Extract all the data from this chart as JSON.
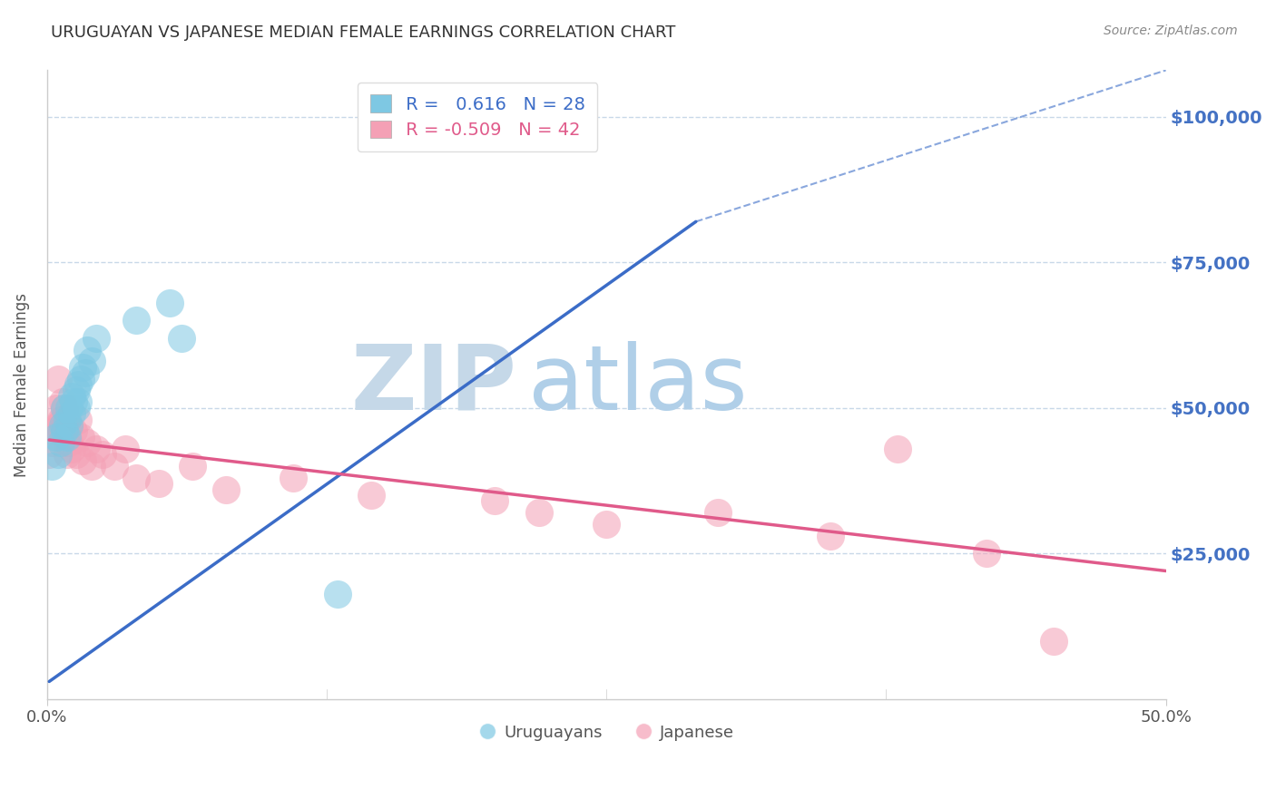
{
  "title": "URUGUAYAN VS JAPANESE MEDIAN FEMALE EARNINGS CORRELATION CHART",
  "source": "Source: ZipAtlas.com",
  "xlabel": "",
  "ylabel": "Median Female Earnings",
  "xlim": [
    0.0,
    0.5
  ],
  "ylim": [
    0,
    108000
  ],
  "xtick_labels": [
    "0.0%",
    "50.0%"
  ],
  "ytick_values": [
    25000,
    50000,
    75000,
    100000
  ],
  "ytick_labels": [
    "$25,000",
    "$50,000",
    "$75,000",
    "$100,000"
  ],
  "legend_R_blue": "0.616",
  "legend_N_blue": "28",
  "legend_R_pink": "-0.509",
  "legend_N_pink": "42",
  "legend_label_blue": "Uruguayans",
  "legend_label_pink": "Japanese",
  "watermark_zip": "ZIP",
  "watermark_atlas": "atlas",
  "blue_color": "#7ec8e3",
  "pink_color": "#f4a0b5",
  "blue_line_color": "#3b6cc7",
  "pink_line_color": "#e05a8a",
  "blue_scatter": {
    "x": [
      0.002,
      0.004,
      0.005,
      0.006,
      0.007,
      0.008,
      0.008,
      0.009,
      0.009,
      0.01,
      0.01,
      0.011,
      0.011,
      0.012,
      0.013,
      0.013,
      0.014,
      0.014,
      0.015,
      0.016,
      0.017,
      0.018,
      0.02,
      0.022,
      0.04,
      0.055,
      0.06,
      0.13
    ],
    "y": [
      40000,
      45000,
      42000,
      44000,
      47000,
      50000,
      46000,
      48000,
      45000,
      50000,
      47000,
      52000,
      49000,
      51000,
      53000,
      50000,
      54000,
      51000,
      55000,
      57000,
      56000,
      60000,
      58000,
      62000,
      65000,
      68000,
      62000,
      18000
    ]
  },
  "pink_scatter": {
    "x": [
      0.001,
      0.002,
      0.003,
      0.004,
      0.005,
      0.005,
      0.006,
      0.006,
      0.007,
      0.007,
      0.008,
      0.008,
      0.009,
      0.009,
      0.01,
      0.01,
      0.011,
      0.012,
      0.013,
      0.014,
      0.015,
      0.016,
      0.018,
      0.02,
      0.022,
      0.025,
      0.03,
      0.035,
      0.04,
      0.05,
      0.065,
      0.08,
      0.11,
      0.145,
      0.2,
      0.22,
      0.25,
      0.3,
      0.35,
      0.38,
      0.42,
      0.45
    ],
    "y": [
      42000,
      44000,
      46000,
      50000,
      47000,
      55000,
      48000,
      46000,
      51000,
      48000,
      50000,
      47000,
      44000,
      42000,
      47000,
      44000,
      43000,
      46000,
      42000,
      48000,
      45000,
      41000,
      44000,
      40000,
      43000,
      42000,
      40000,
      43000,
      38000,
      37000,
      40000,
      36000,
      38000,
      35000,
      34000,
      32000,
      30000,
      32000,
      28000,
      43000,
      25000,
      10000
    ]
  },
  "blue_line_solid": {
    "x0": 0.001,
    "y0": 3000,
    "x1": 0.29,
    "y1": 82000
  },
  "blue_line_dashed": {
    "x0": 0.29,
    "y0": 82000,
    "x1": 0.5,
    "y1": 108000
  },
  "pink_line": {
    "x0": 0.001,
    "y0": 44500,
    "x1": 0.5,
    "y1": 22000
  },
  "background_color": "#ffffff",
  "grid_color": "#c8d8e8",
  "axis_color": "#cccccc",
  "title_color": "#333333",
  "ytick_color": "#4472c4",
  "watermark_zip_color": "#c5d8e8",
  "watermark_atlas_color": "#b0cfe8",
  "source_color": "#888888"
}
